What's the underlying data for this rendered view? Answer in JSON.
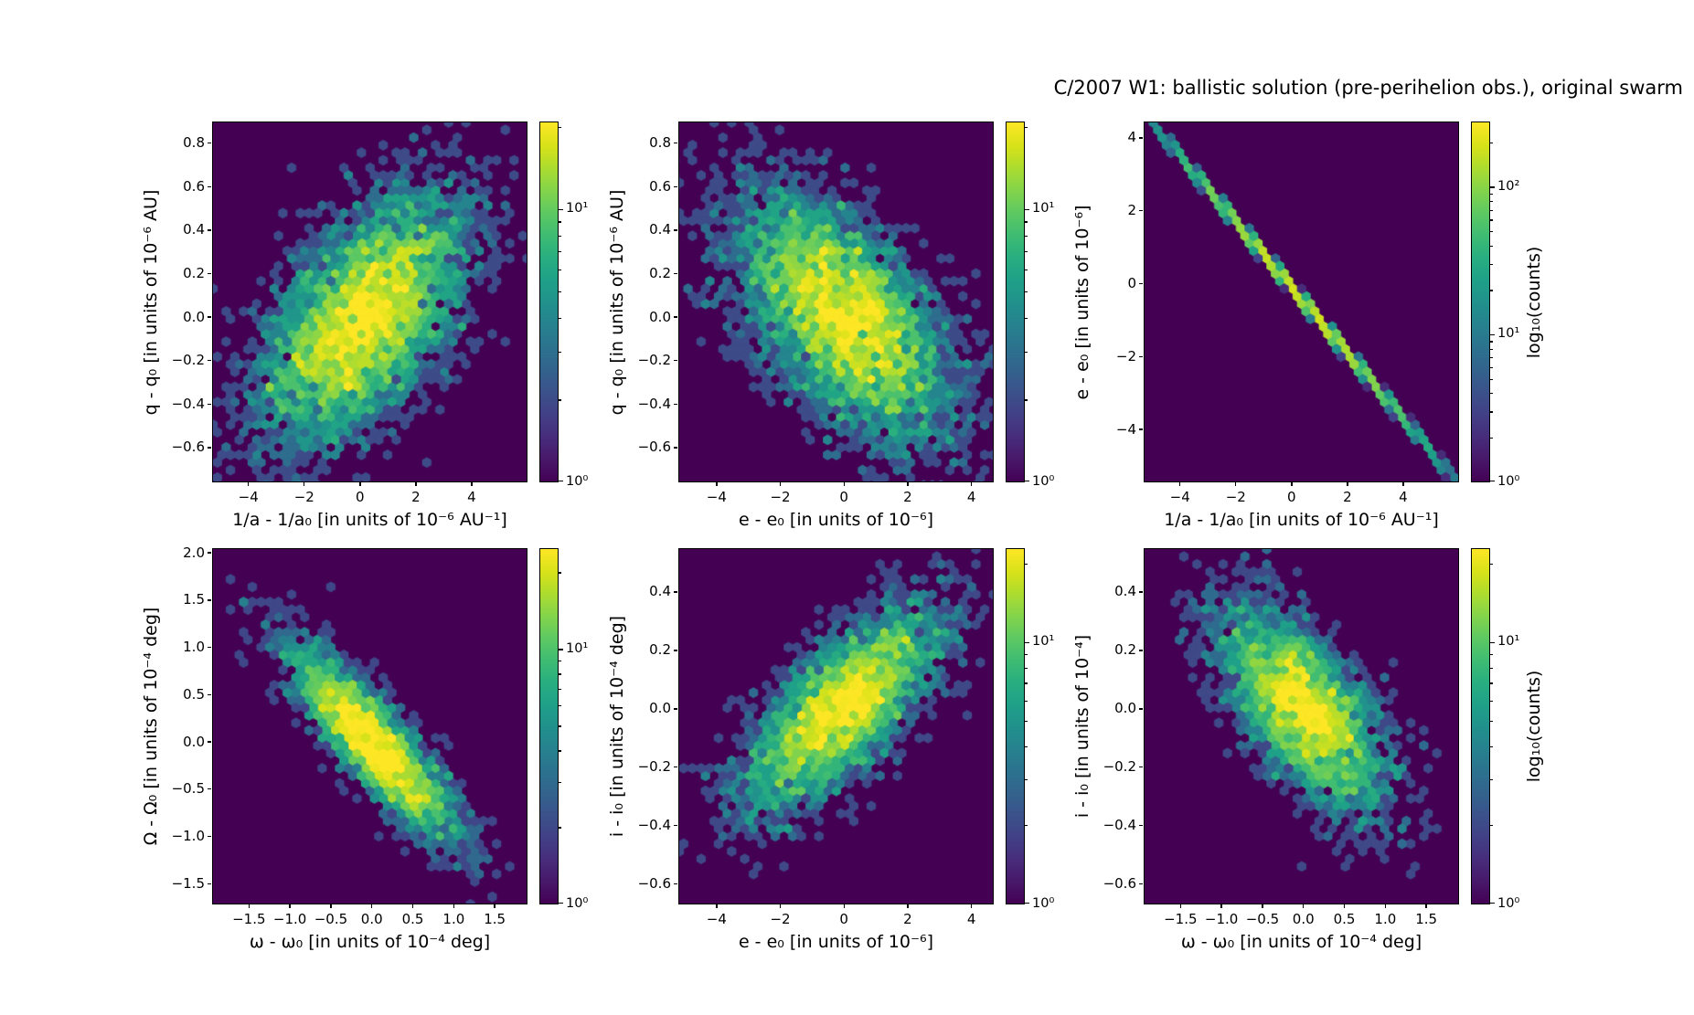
{
  "title": "C/2007 W1:  ballistic solution (pre-perihelion obs.), original swarm",
  "colors": {
    "background": "#ffffff",
    "hexbin_background": "#440154",
    "hexbin_peak": "#fde725",
    "axis": "#000000",
    "viridis_stops": [
      "#440154",
      "#48186a",
      "#472d7b",
      "#424086",
      "#3b528b",
      "#33638d",
      "#2c728e",
      "#26828e",
      "#21918c",
      "#1fa088",
      "#28ae80",
      "#3fbc73",
      "#5ec962",
      "#84d44b",
      "#addc30",
      "#d8e219",
      "#fde725"
    ]
  },
  "chart_data": {
    "type": "hexbin",
    "colormap": "viridis",
    "color_scale": "log10(counts)",
    "colorbar_label": "log₁₀(counts)",
    "grid": {
      "rows": 2,
      "cols": 3
    },
    "panels": [
      {
        "id": "inv-a_vs_q",
        "xlabel": "1/a - 1/a₀ [in units of 10⁻⁶ AU⁻¹]",
        "ylabel": "q - q₀ [in units of 10⁻⁶ AU]",
        "xlim": [
          -5.3,
          6.0
        ],
        "ylim": [
          -0.76,
          0.9
        ],
        "xticks": {
          "values": [
            -4,
            -2,
            0,
            2,
            4
          ],
          "labels": [
            "−4",
            "−2",
            "0",
            "2",
            "4"
          ]
        },
        "yticks": {
          "values": [
            0.8,
            0.6,
            0.4,
            0.2,
            0.0,
            -0.2,
            -0.4,
            -0.6
          ],
          "labels": [
            "0.8",
            "0.6",
            "0.4",
            "0.2",
            "0.0",
            "−0.2",
            "−0.4",
            "−0.6"
          ]
        },
        "distribution": {
          "kind": "gauss2d",
          "cx": 0.15,
          "cy": 0.0,
          "sx": 1.8,
          "sy": 0.28,
          "rho": 0.55,
          "n": 5200,
          "seed": 11
        },
        "colorbar": {
          "vmax": 21,
          "tick_values": [
            10,
            1
          ],
          "tick_labels": [
            "10¹",
            "10⁰"
          ],
          "show_label": false
        }
      },
      {
        "id": "e_vs_q",
        "xlabel": "e - e₀ [in units of 10⁻⁶]",
        "ylabel": "q - q₀ [in units of 10⁻⁶ AU]",
        "xlim": [
          -5.2,
          4.7
        ],
        "ylim": [
          -0.76,
          0.9
        ],
        "xticks": {
          "values": [
            -4,
            -2,
            0,
            2,
            4
          ],
          "labels": [
            "−4",
            "−2",
            "0",
            "2",
            "4"
          ]
        },
        "yticks": {
          "values": [
            0.8,
            0.6,
            0.4,
            0.2,
            0.0,
            -0.2,
            -0.4,
            -0.6
          ],
          "labels": [
            "0.8",
            "0.6",
            "0.4",
            "0.2",
            "0.0",
            "−0.2",
            "−0.4",
            "−0.6"
          ]
        },
        "distribution": {
          "kind": "gauss2d",
          "cx": 0.0,
          "cy": 0.0,
          "sx": 1.7,
          "sy": 0.28,
          "rho": -0.55,
          "n": 5200,
          "seed": 22
        },
        "colorbar": {
          "vmax": 21,
          "tick_values": [
            10,
            1
          ],
          "tick_labels": [
            "10¹",
            "10⁰"
          ],
          "show_label": false
        }
      },
      {
        "id": "inv-a_vs_e",
        "xlabel": "1/a - 1/a₀ [in units of 10⁻⁶ AU⁻¹]",
        "ylabel": "e - e₀ [in units of 10⁻⁶]",
        "xlim": [
          -5.3,
          6.0
        ],
        "ylim": [
          -5.45,
          4.45
        ],
        "xticks": {
          "values": [
            -4,
            -2,
            0,
            2,
            4
          ],
          "labels": [
            "−4",
            "−2",
            "0",
            "2",
            "4"
          ]
        },
        "yticks": {
          "values": [
            4,
            2,
            0,
            -2,
            -4
          ],
          "labels": [
            "4",
            "2",
            "0",
            "−2",
            "−4"
          ]
        },
        "distribution": {
          "kind": "line",
          "cx": 0.3,
          "sx": 2.3,
          "slope": -0.9,
          "intercept": -0.1,
          "noise": 0.05,
          "n": 5200,
          "seed": 33
        },
        "colorbar": {
          "vmax": 280,
          "tick_values": [
            100,
            10,
            1
          ],
          "tick_labels": [
            "10²",
            "10¹",
            "10⁰"
          ],
          "show_label": true
        }
      },
      {
        "id": "omega_vs_Omega",
        "xlabel": "ω - ω₀ [in units of 10⁻⁴ deg]",
        "ylabel": "Ω - Ω₀ [in units of 10⁻⁴ deg]",
        "xlim": [
          -1.95,
          1.9
        ],
        "ylim": [
          -1.72,
          2.05
        ],
        "xticks": {
          "values": [
            -1.5,
            -1.0,
            -0.5,
            0.0,
            0.5,
            1.0,
            1.5
          ],
          "labels": [
            "−1.5",
            "−1.0",
            "−0.5",
            "0.0",
            "0.5",
            "1.0",
            "1.5"
          ]
        },
        "yticks": {
          "values": [
            2.0,
            1.5,
            1.0,
            0.5,
            0.0,
            -0.5,
            -1.0,
            -1.5
          ],
          "labels": [
            "2.0",
            "1.5",
            "1.0",
            "0.5",
            "0.0",
            "−0.5",
            "−1.0",
            "−1.5"
          ]
        },
        "distribution": {
          "kind": "gauss2d",
          "cx": 0.0,
          "cy": 0.0,
          "sx": 0.52,
          "sy": 0.52,
          "rho": -0.87,
          "n": 3000,
          "seed": 44
        },
        "colorbar": {
          "vmax": 25,
          "tick_values": [
            10,
            1
          ],
          "tick_labels": [
            "10¹",
            "10⁰"
          ],
          "show_label": false
        }
      },
      {
        "id": "e_vs_i",
        "xlabel": "e - e₀ [in units of 10⁻⁶]",
        "ylabel": "i - i₀ [in units of 10⁻⁴ deg]",
        "xlim": [
          -5.2,
          4.7
        ],
        "ylim": [
          -0.67,
          0.55
        ],
        "xticks": {
          "values": [
            -4,
            -2,
            0,
            2,
            4
          ],
          "labels": [
            "−4",
            "−2",
            "0",
            "2",
            "4"
          ]
        },
        "yticks": {
          "values": [
            0.4,
            0.2,
            0.0,
            -0.2,
            -0.4,
            -0.6
          ],
          "labels": [
            "0.4",
            "0.2",
            "0.0",
            "−0.2",
            "−0.4",
            "−0.6"
          ]
        },
        "distribution": {
          "kind": "gauss2d",
          "cx": -0.1,
          "cy": 0.0,
          "sx": 1.55,
          "sy": 0.17,
          "rho": 0.72,
          "n": 3800,
          "seed": 55
        },
        "colorbar": {
          "vmax": 23,
          "tick_values": [
            10,
            1
          ],
          "tick_labels": [
            "10¹",
            "10⁰"
          ],
          "show_label": false
        }
      },
      {
        "id": "omega_vs_i",
        "xlabel": "ω - ω₀ [in units of 10⁻⁴ deg]",
        "ylabel": "i - i₀ [in units of 10⁻⁴]",
        "xlim": [
          -1.95,
          1.9
        ],
        "ylim": [
          -0.67,
          0.55
        ],
        "xticks": {
          "values": [
            -1.5,
            -1.0,
            -0.5,
            0.0,
            0.5,
            1.0,
            1.5
          ],
          "labels": [
            "−1.5",
            "−1.0",
            "−0.5",
            "0.0",
            "0.5",
            "1.0",
            "1.5"
          ]
        },
        "yticks": {
          "values": [
            0.4,
            0.2,
            0.0,
            -0.2,
            -0.4,
            -0.6
          ],
          "labels": [
            "0.4",
            "0.2",
            "0.0",
            "−0.2",
            "−0.4",
            "−0.6"
          ]
        },
        "distribution": {
          "kind": "gauss2d",
          "cx": 0.0,
          "cy": 0.0,
          "sx": 0.5,
          "sy": 0.17,
          "rho": -0.63,
          "n": 3500,
          "seed": 66
        },
        "colorbar": {
          "vmax": 23,
          "tick_values": [
            10,
            1
          ],
          "tick_labels": [
            "10¹",
            "10⁰"
          ],
          "show_label": false
        }
      }
    ]
  }
}
